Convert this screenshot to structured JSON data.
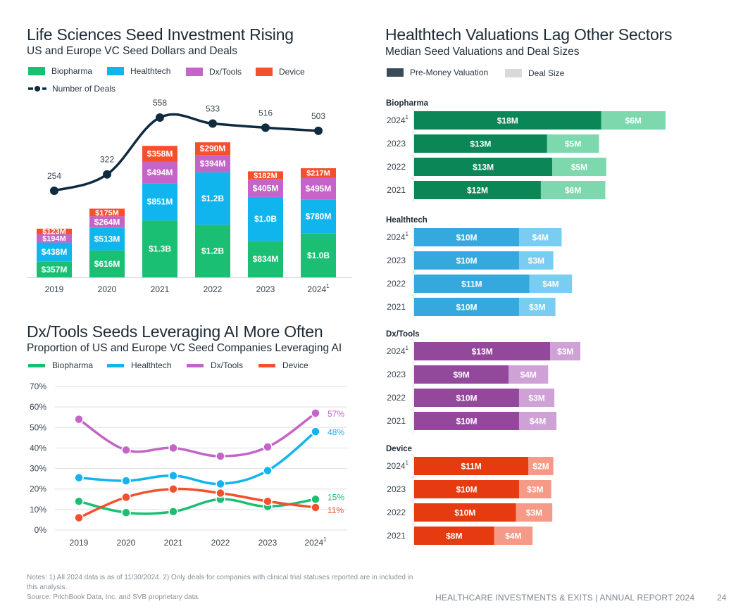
{
  "colors": {
    "biopharma": "#1bbf74",
    "healthtech": "#11b5ee",
    "dxtools": "#c464c8",
    "device": "#f4502c",
    "deals_line": "#0f2b3f",
    "premoney_legend": "#3b4a57",
    "dealsize_legend": "#d9d9d9"
  },
  "chart_data": [
    {
      "type": "bar",
      "stacked": true,
      "title": "Life Sciences Seed Investment Rising",
      "subtitle": "US and Europe VC Seed Dollars and Deals",
      "categories": [
        "2019",
        "2020",
        "2021",
        "2022",
        "2023",
        "2024"
      ],
      "category_footnotes": [
        "",
        "",
        "",
        "",
        "",
        "1"
      ],
      "unit": "$M",
      "series": [
        {
          "name": "Biopharma",
          "color_key": "biopharma",
          "values": [
            357,
            616,
            1300,
            1200,
            834,
            1000
          ],
          "labels": [
            "$357M",
            "$616M",
            "$1.3B",
            "$1.2B",
            "$834M",
            "$1.0B"
          ]
        },
        {
          "name": "Healthtech",
          "color_key": "healthtech",
          "values": [
            438,
            513,
            851,
            1200,
            1000,
            780
          ],
          "labels": [
            "$438M",
            "$513M",
            "$851M",
            "$1.2B",
            "$1.0B",
            "$780M"
          ]
        },
        {
          "name": "Dx/Tools",
          "color_key": "dxtools",
          "values": [
            194,
            264,
            494,
            394,
            405,
            495
          ],
          "labels": [
            "$194M",
            "$264M",
            "$494M",
            "$394M",
            "$405M",
            "$495M"
          ]
        },
        {
          "name": "Device",
          "color_key": "device",
          "values": [
            123,
            175,
            358,
            290,
            182,
            217
          ],
          "labels": [
            "$123M",
            "$175M",
            "$358M",
            "$290M",
            "$182M",
            "$217M"
          ]
        }
      ],
      "line_series": {
        "name": "Number of Deals",
        "values": [
          254,
          322,
          558,
          533,
          516,
          503
        ]
      },
      "legend": [
        "Biopharma",
        "Healthtech",
        "Dx/Tools",
        "Device",
        "Number of Deals"
      ],
      "legend_position": "top-left",
      "grid": false
    },
    {
      "type": "line",
      "title": "Dx/Tools Seeds Leveraging AI More Often",
      "subtitle": "Proportion of US and Europe VC Seed Companies Leveraging AI",
      "x": [
        "2019",
        "2020",
        "2021",
        "2022",
        "2023",
        "2024"
      ],
      "x_footnotes": [
        "",
        "",
        "",
        "",
        "",
        "1"
      ],
      "yticks": [
        "0%",
        "10%",
        "20%",
        "30%",
        "40%",
        "50%",
        "60%",
        "70%"
      ],
      "ylim": [
        0,
        70
      ],
      "grid": true,
      "series": [
        {
          "name": "Biopharma",
          "color_key": "biopharma",
          "values": [
            14,
            8.5,
            9,
            15,
            11.5,
            15
          ],
          "end_label": "15%"
        },
        {
          "name": "Healthtech",
          "color_key": "healthtech",
          "values": [
            25.5,
            24,
            26.5,
            22.5,
            29,
            48
          ],
          "end_label": "48%"
        },
        {
          "name": "Dx/Tools",
          "color_key": "dxtools",
          "values": [
            54,
            39,
            40,
            36,
            40.5,
            57
          ],
          "end_label": "57%"
        },
        {
          "name": "Device",
          "color_key": "device",
          "values": [
            6,
            16,
            20,
            18,
            14,
            11
          ],
          "end_label": "11%"
        }
      ],
      "legend": [
        "Biopharma",
        "Healthtech",
        "Dx/Tools",
        "Device"
      ],
      "legend_position": "top-left"
    },
    {
      "type": "bar",
      "orientation": "horizontal",
      "stacked": true,
      "title": "Healthtech Valuations Lag Other Sectors",
      "subtitle": "Median Seed Valuations and Deal Sizes",
      "legend": [
        "Pre-Money Valuation",
        "Deal Size"
      ],
      "legend_position": "top-left",
      "unit": "$M",
      "groups": [
        {
          "name": "Biopharma",
          "dark": "#0b8757",
          "light": "#7dd8ae",
          "rows": [
            {
              "year": "2024",
              "footnote": "1",
              "pre_money": 18,
              "deal_size": 6.2,
              "pre_label": "$18M",
              "deal_label": "$6M"
            },
            {
              "year": "2023",
              "footnote": "",
              "pre_money": 12.8,
              "deal_size": 5,
              "pre_label": "$13M",
              "deal_label": "$5M"
            },
            {
              "year": "2022",
              "footnote": "",
              "pre_money": 13.3,
              "deal_size": 5.2,
              "pre_label": "$13M",
              "deal_label": "$5M"
            },
            {
              "year": "2021",
              "footnote": "",
              "pre_money": 12.2,
              "deal_size": 6.2,
              "pre_label": "$12M",
              "deal_label": "$6M"
            }
          ]
        },
        {
          "name": "Healthtech",
          "dark": "#35a8dd",
          "light": "#7acdf2",
          "rows": [
            {
              "year": "2024",
              "footnote": "1",
              "pre_money": 10.1,
              "deal_size": 4.1,
              "pre_label": "$10M",
              "deal_label": "$4M"
            },
            {
              "year": "2023",
              "footnote": "",
              "pre_money": 10.1,
              "deal_size": 3.3,
              "pre_label": "$10M",
              "deal_label": "$3M"
            },
            {
              "year": "2022",
              "footnote": "",
              "pre_money": 11.1,
              "deal_size": 4.1,
              "pre_label": "$11M",
              "deal_label": "$4M"
            },
            {
              "year": "2021",
              "footnote": "",
              "pre_money": 10.1,
              "deal_size": 3.5,
              "pre_label": "$10M",
              "deal_label": "$3M"
            }
          ]
        },
        {
          "name": "Dx/Tools",
          "dark": "#94489c",
          "light": "#cfa1d6",
          "rows": [
            {
              "year": "2024",
              "footnote": "1",
              "pre_money": 13.1,
              "deal_size": 2.9,
              "pre_label": "$13M",
              "deal_label": "$3M"
            },
            {
              "year": "2023",
              "footnote": "",
              "pre_money": 9.1,
              "deal_size": 3.8,
              "pre_label": "$9M",
              "deal_label": "$4M"
            },
            {
              "year": "2022",
              "footnote": "",
              "pre_money": 10.1,
              "deal_size": 3.4,
              "pre_label": "$10M",
              "deal_label": "$3M"
            },
            {
              "year": "2021",
              "footnote": "",
              "pre_money": 10.1,
              "deal_size": 3.6,
              "pre_label": "$10M",
              "deal_label": "$4M"
            }
          ]
        },
        {
          "name": "Device",
          "dark": "#e63a10",
          "light": "#f59a86",
          "rows": [
            {
              "year": "2024",
              "footnote": "1",
              "pre_money": 11,
              "deal_size": 2.4,
              "pre_label": "$11M",
              "deal_label": "$2M"
            },
            {
              "year": "2023",
              "footnote": "",
              "pre_money": 10.1,
              "deal_size": 3.1,
              "pre_label": "$10M",
              "deal_label": "$3M"
            },
            {
              "year": "2022",
              "footnote": "",
              "pre_money": 9.8,
              "deal_size": 3.5,
              "pre_label": "$10M",
              "deal_label": "$3M"
            },
            {
              "year": "2021",
              "footnote": "",
              "pre_money": 7.7,
              "deal_size": 3.7,
              "pre_label": "$8M",
              "deal_label": "$4M"
            }
          ]
        }
      ]
    }
  ],
  "chart1": {
    "title": "Life Sciences Seed Investment Rising",
    "subtitle": "US and Europe VC Seed Dollars and Deals",
    "legend": {
      "biopharma": "Biopharma",
      "healthtech": "Healthtech",
      "dxtools": "Dx/Tools",
      "device": "Device",
      "deals": "Number of Deals"
    }
  },
  "chart2": {
    "title": "Dx/Tools Seeds Leveraging AI More Often",
    "subtitle": "Proportion of US and Europe VC Seed Companies Leveraging AI",
    "legend": {
      "biopharma": "Biopharma",
      "healthtech": "Healthtech",
      "dxtools": "Dx/Tools",
      "device": "Device"
    }
  },
  "chart3": {
    "title": "Healthtech Valuations Lag Other Sectors",
    "subtitle": "Median Seed Valuations and Deal Sizes",
    "legend": {
      "premoney": "Pre-Money Valuation",
      "dealsize": "Deal Size"
    }
  },
  "footer": {
    "notes_line1": "Notes: 1) All 2024 data is as of 11/30/2024. 2) Only deals for companies with clinical trial statuses reported are in included in this analysis.",
    "source": "Source: PitchBook Data, Inc. and SVB proprietary data.",
    "report": "HEALTHCARE INVESTMENTS & EXITS | ANNUAL REPORT 2024",
    "page": "24"
  }
}
